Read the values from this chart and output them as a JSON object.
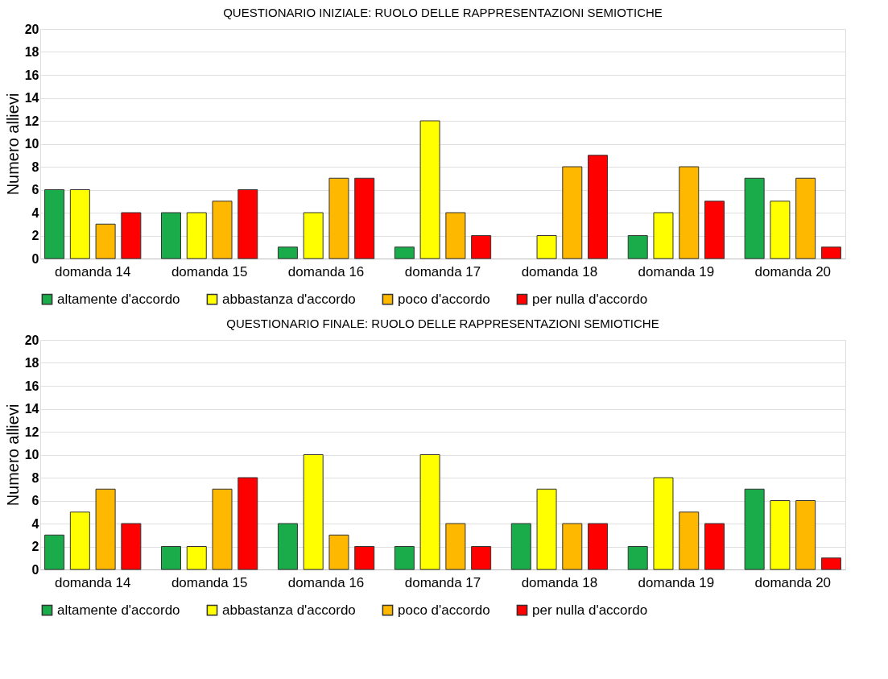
{
  "chart_data": [
    {
      "type": "bar",
      "title": "QUESTIONARIO INIZIALE: RUOLO DELLE RAPPRESENTAZIONI SEMIOTICHE",
      "ylabel": "Numero allievi",
      "categories": [
        "domanda 14",
        "domanda 15",
        "domanda 16",
        "domanda 17",
        "domanda 18",
        "domanda 19",
        "domanda 20"
      ],
      "series": [
        {
          "name": "altamente d'accordo",
          "color": "#1aab4a",
          "values": [
            6,
            4,
            1,
            1,
            0,
            2,
            7
          ]
        },
        {
          "name": "abbastanza d'accordo",
          "color": "#ffff00",
          "values": [
            6,
            4,
            4,
            12,
            2,
            4,
            5
          ]
        },
        {
          "name": "poco d'accordo",
          "color": "#ffb800",
          "values": [
            3,
            5,
            7,
            4,
            8,
            8,
            7
          ]
        },
        {
          "name": "per nulla d'accordo",
          "color": "#ff0000",
          "values": [
            4,
            6,
            7,
            2,
            9,
            5,
            1
          ]
        }
      ],
      "ylim": [
        0,
        20
      ],
      "yticks": [
        0,
        2,
        4,
        6,
        8,
        10,
        12,
        14,
        16,
        18,
        20
      ],
      "grid": "y",
      "legend": "bottom"
    },
    {
      "type": "bar",
      "title": "QUESTIONARIO FINALE: RUOLO DELLE RAPPRESENTAZIONI SEMIOTICHE",
      "ylabel": "Numero allievi",
      "categories": [
        "domanda 14",
        "domanda 15",
        "domanda 16",
        "domanda 17",
        "domanda 18",
        "domanda 19",
        "domanda 20"
      ],
      "series": [
        {
          "name": "altamente d'accordo",
          "color": "#1aab4a",
          "values": [
            3,
            2,
            4,
            2,
            4,
            2,
            7
          ]
        },
        {
          "name": "abbastanza d'accordo",
          "color": "#ffff00",
          "values": [
            5,
            2,
            10,
            10,
            7,
            8,
            6
          ]
        },
        {
          "name": "poco d'accordo",
          "color": "#ffb800",
          "values": [
            7,
            7,
            3,
            4,
            4,
            5,
            6
          ]
        },
        {
          "name": "per nulla d'accordo",
          "color": "#ff0000",
          "values": [
            4,
            8,
            2,
            2,
            4,
            4,
            1
          ]
        }
      ],
      "ylim": [
        0,
        20
      ],
      "yticks": [
        0,
        2,
        4,
        6,
        8,
        10,
        12,
        14,
        16,
        18,
        20
      ],
      "grid": "y",
      "legend": "bottom"
    }
  ]
}
